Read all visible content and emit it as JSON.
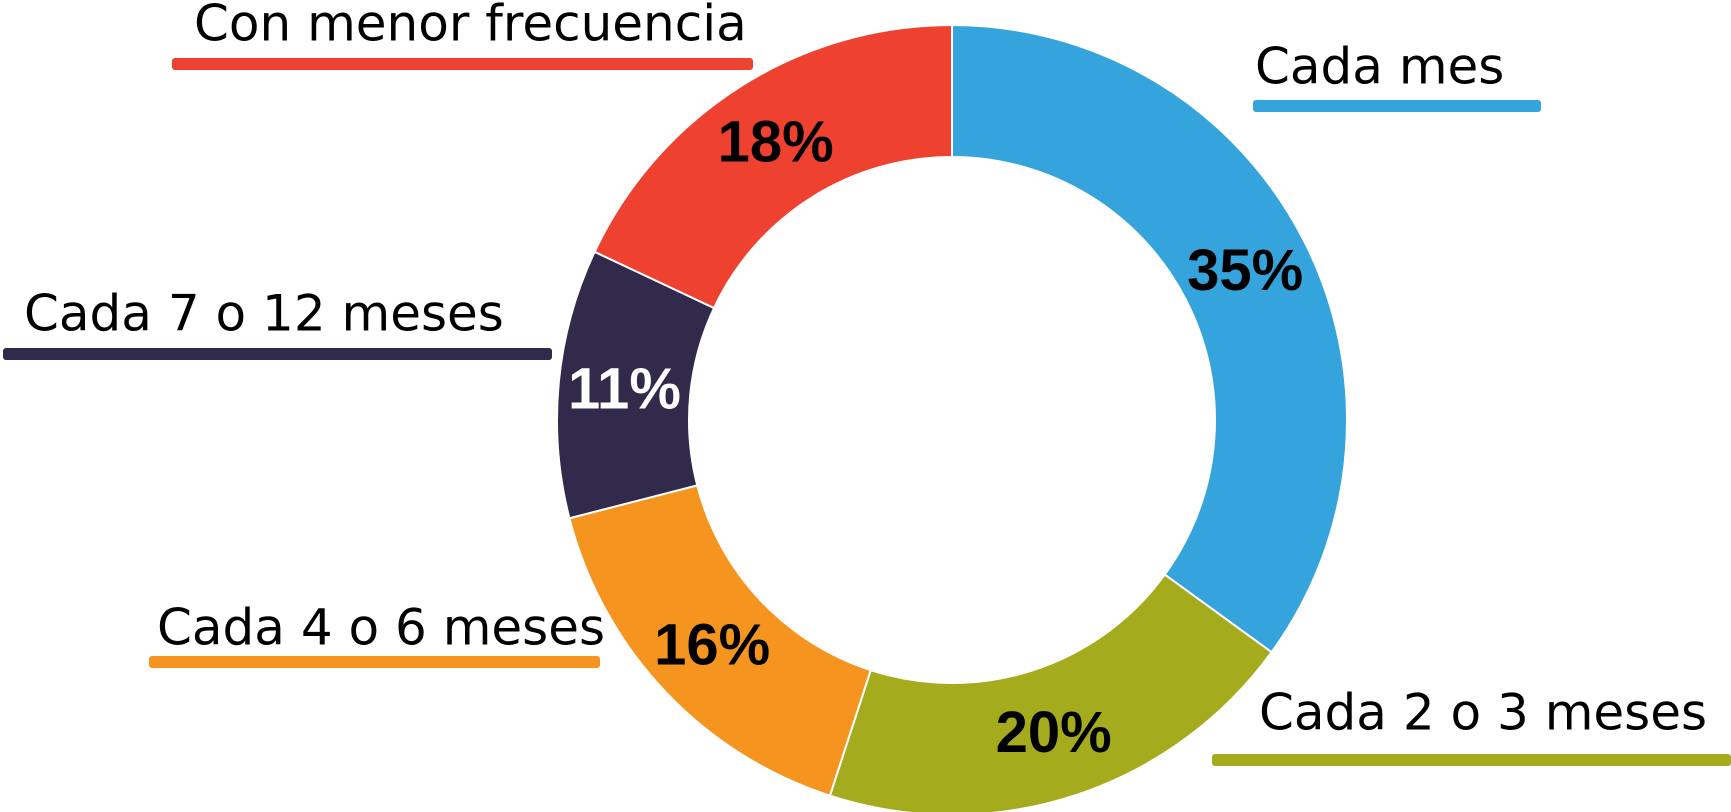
{
  "chart_data": {
    "type": "donut",
    "categories": [
      "Cada mes",
      "Cada 2 o 3 meses",
      "Cada 4 o 6 meses",
      "Cada 7 o 12 meses",
      "Con menor frecuencia"
    ],
    "values": [
      35,
      20,
      16,
      11,
      18
    ],
    "value_labels": [
      "35%",
      "20%",
      "16%",
      "11%",
      "18%"
    ],
    "colors": [
      "#35a4dc",
      "#a4ab1c",
      "#f5951f",
      "#322a4a",
      "#ef4130"
    ]
  }
}
